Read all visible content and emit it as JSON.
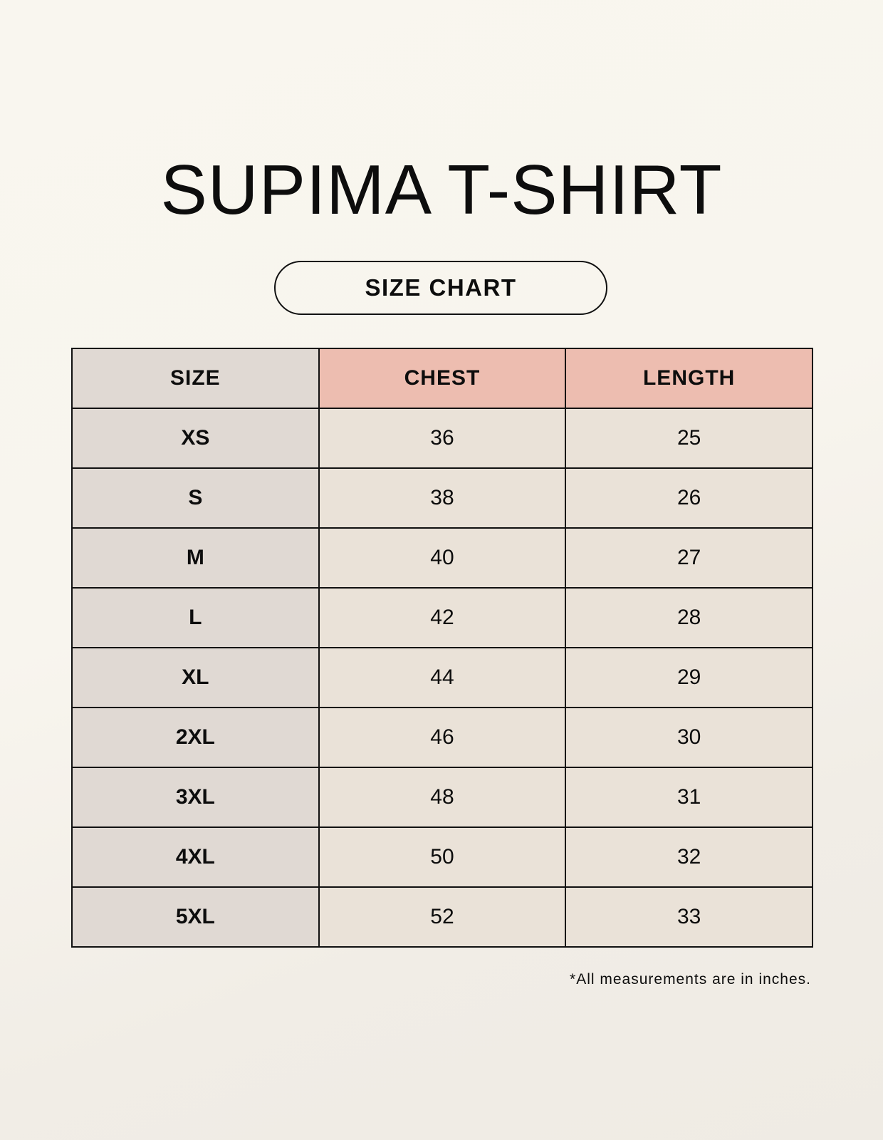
{
  "title": "SUPIMA T-SHIRT",
  "subtitle": "SIZE CHART",
  "colors": {
    "size_column": "#e0d9d3",
    "header_highlight": "#edbdb0",
    "value_cells": "#eae2d8"
  },
  "table": {
    "headers": [
      "SIZE",
      "CHEST",
      "LENGTH"
    ],
    "rows": [
      [
        "XS",
        "36",
        "25"
      ],
      [
        "S",
        "38",
        "26"
      ],
      [
        "M",
        "40",
        "27"
      ],
      [
        "L",
        "42",
        "28"
      ],
      [
        "XL",
        "44",
        "29"
      ],
      [
        "2XL",
        "46",
        "30"
      ],
      [
        "3XL",
        "48",
        "31"
      ],
      [
        "4XL",
        "50",
        "32"
      ],
      [
        "5XL",
        "52",
        "33"
      ]
    ]
  },
  "footnote": "*All measurements are in inches."
}
